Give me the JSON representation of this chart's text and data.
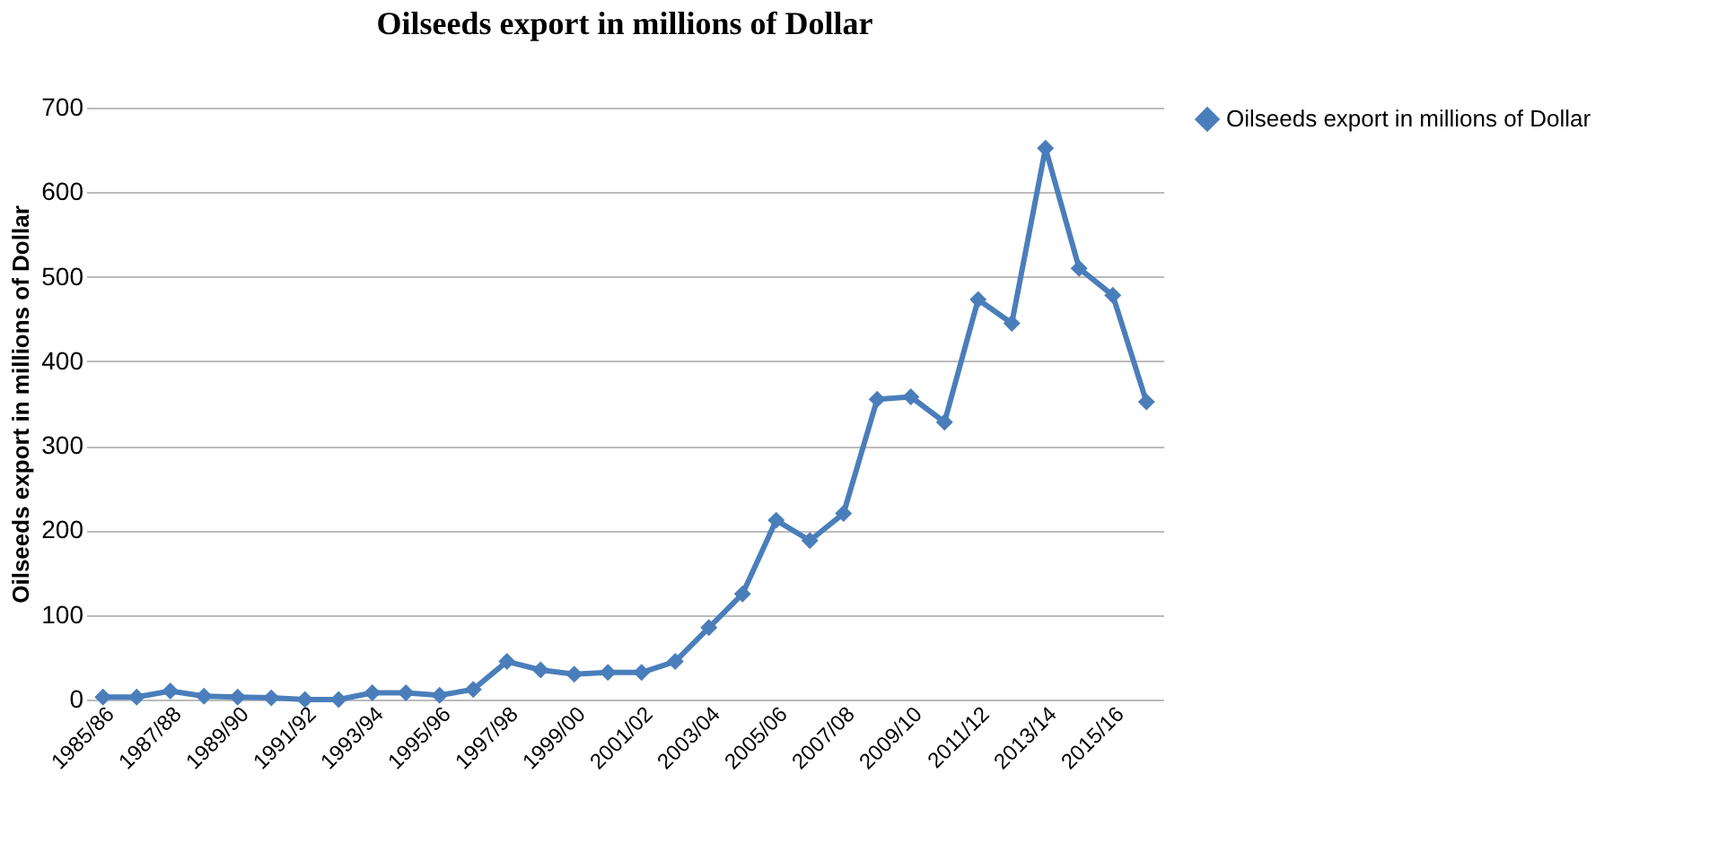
{
  "chart_data": {
    "type": "line",
    "title": "Oilseeds export in millions of Dollar",
    "ylabel": "Oilseeds export in millions of Dollar",
    "categories": [
      "1985/86",
      null,
      "1987/88",
      null,
      "1989/90",
      null,
      "1991/92",
      null,
      "1993/94",
      null,
      "1995/96",
      null,
      "1997/98",
      null,
      "1999/00",
      null,
      "2001/02",
      null,
      "2003/04",
      null,
      "2005/06",
      null,
      "2007/08",
      null,
      "2009/10",
      null,
      "2011/12",
      null,
      "2013/14",
      null,
      "2015/16",
      null
    ],
    "series": [
      {
        "name": "Oilseeds export in millions of Dollar",
        "color": "#4a7ebb",
        "values": [
          3,
          3,
          10,
          4,
          3,
          2,
          0,
          0,
          8,
          8,
          5,
          12,
          45,
          35,
          30,
          32,
          32,
          45,
          85,
          125,
          212,
          188,
          220,
          355,
          358,
          328,
          473,
          445,
          652,
          510,
          478,
          352
        ]
      }
    ],
    "ylim": [
      0,
      700
    ],
    "yticks": [
      0,
      100,
      200,
      300,
      400,
      500,
      600,
      700
    ],
    "grid": "y",
    "legend": "right",
    "marker": "diamond",
    "line_style": "solid"
  }
}
